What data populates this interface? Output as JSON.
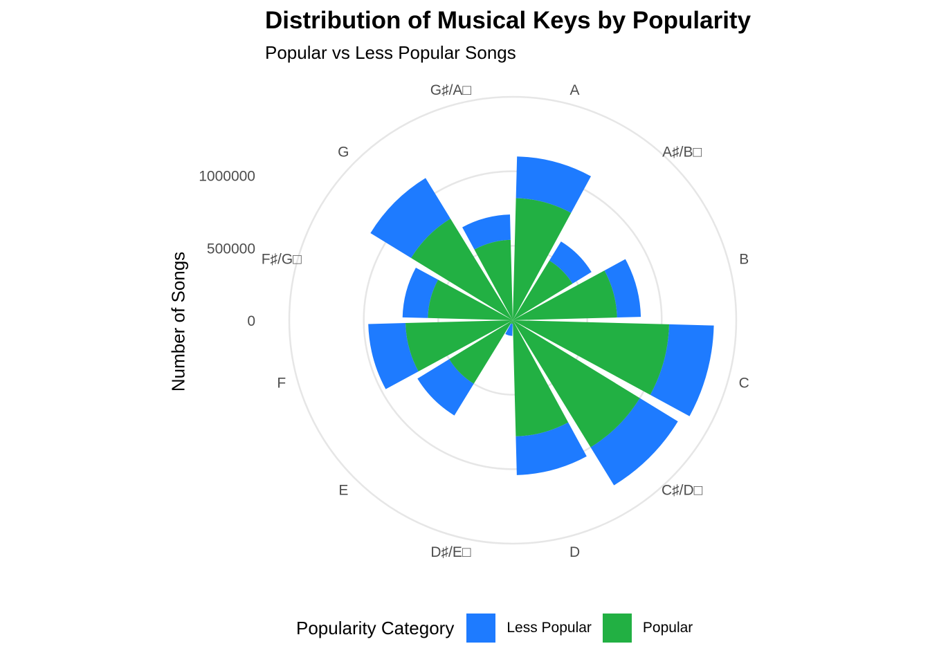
{
  "chart_data": {
    "type": "bar",
    "coord": "polar",
    "stacked": true,
    "title": "Distribution of Musical Keys by Popularity",
    "subtitle": "Popular vs Less Popular Songs",
    "ylabel": "Number of Songs",
    "categories": [
      "A",
      "A♯/B♭",
      "B",
      "C",
      "C♯/D♭",
      "D",
      "D♯/E♭",
      "E",
      "F",
      "F♯/G♭",
      "G",
      "G♯/A♭"
    ],
    "category_labels": [
      "A",
      "A♯/B□",
      "B",
      "C",
      "C♯/D□",
      "D",
      "D♯/E□",
      "E",
      "F",
      "F♯/G□",
      "G",
      "G♯/A□"
    ],
    "series": [
      {
        "name": "Popular",
        "color": "#22b043",
        "values": [
          820000,
          470000,
          700000,
          1050000,
          1000000,
          780000,
          25000,
          500000,
          720000,
          570000,
          800000,
          540000
        ]
      },
      {
        "name": "Less Popular",
        "color": "#1e7bff",
        "values": [
          280000,
          150000,
          160000,
          300000,
          300000,
          260000,
          80000,
          250000,
          250000,
          170000,
          320000,
          170000
        ]
      }
    ],
    "y_ticks": [
      0,
      500000,
      1000000
    ],
    "y_tick_labels": [
      "0",
      "500000",
      "1000000"
    ],
    "ylim": [
      0,
      1500000
    ],
    "grid": true,
    "legend": {
      "title": "Popularity Category",
      "position": "bottom",
      "order": [
        "Less Popular",
        "Popular"
      ]
    }
  }
}
